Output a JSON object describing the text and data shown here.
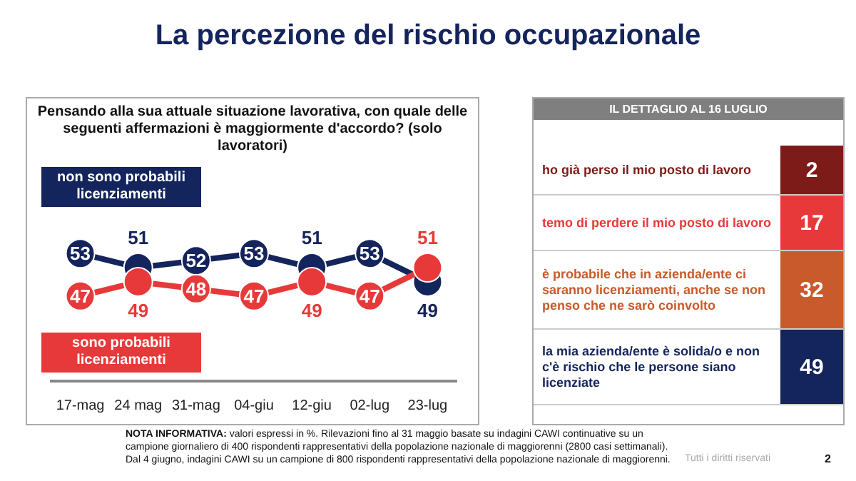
{
  "chart_data": [
    {
      "type": "line",
      "title": "La percezione del rischio occupazionale",
      "subtitle": "Pensando alla sua attuale situazione lavorativa, con quale delle seguenti affermazioni è maggiormente d'accordo? (solo lavoratori)",
      "categories": [
        "17-mag",
        "24 mag",
        "31-mag",
        "04-giu",
        "12-giu",
        "02-lug",
        "23-lug"
      ],
      "series": [
        {
          "name": "non sono probabili licenziamenti",
          "color": "#14245c",
          "values": [
            53,
            51,
            52,
            53,
            51,
            53,
            49
          ]
        },
        {
          "name": "sono probabili licenziamenti",
          "color": "#e8393a",
          "values": [
            47,
            49,
            48,
            47,
            49,
            47,
            51
          ]
        }
      ],
      "tick_labels": "x",
      "data_labels": true,
      "marker": "circle",
      "legend": "left",
      "annotations": [
        "NOTA INFORMATIVA: valori espressi in %. Rilevazioni fino al 31 maggio basate su indagini CAWI continuative su un campione giornaliero di 400 rispondenti rappresentativi della popolazione nazionale di maggiorenni (2800 casi settimanali). Dal 4 giugno, indagini CAWI su un campione di 800 rispondenti rappresentativi della popolazione nazionale di maggiorenni.",
        "Tutti i diritti riservati",
        "2"
      ]
    },
    {
      "type": "other",
      "title": "IL DETTAGLIO AL 16 LUGLIO",
      "annotations": [
        "ho già perso il mio posto di lavoro",
        "2",
        "temo di perdere il mio posto di lavoro",
        "17",
        "è probabile che in azienda/ente ci saranno licenziamenti, anche se non penso che ne sarò coinvolto",
        "32",
        "la mia azienda/ente è solida/o e non c'è rischio che le persone siano licenziate",
        "49"
      ]
    }
  ]
}
